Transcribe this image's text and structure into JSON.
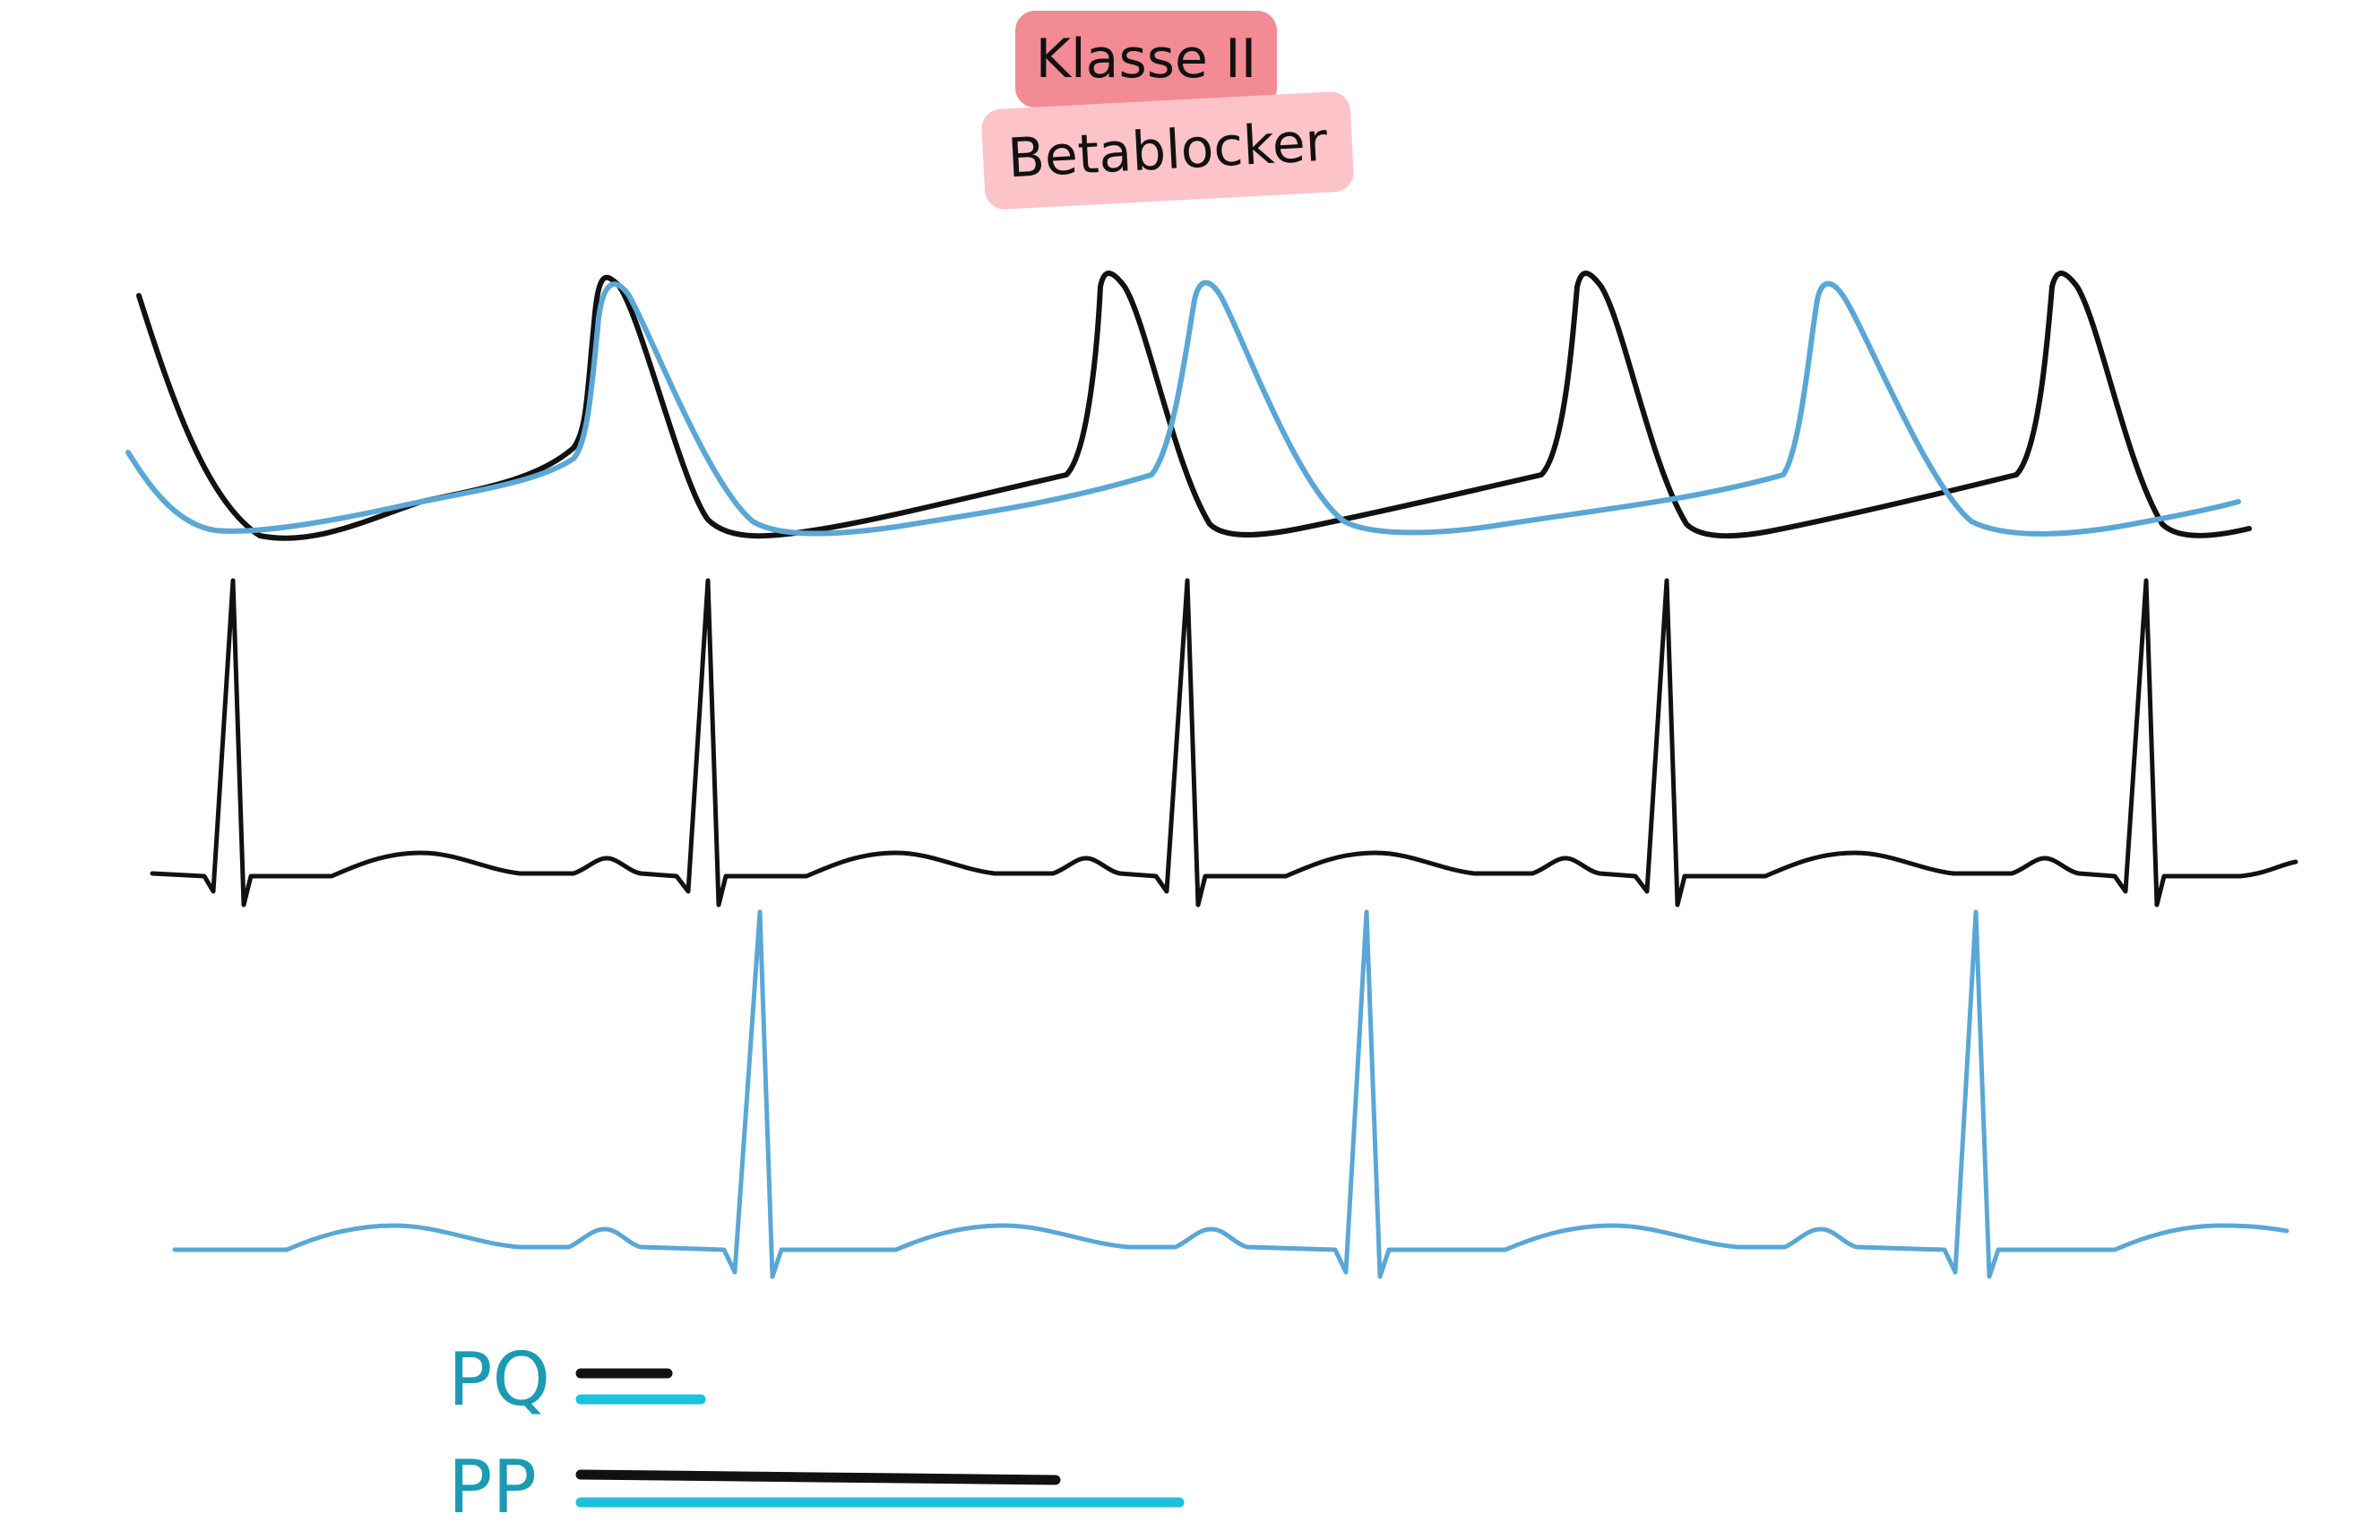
{
  "tags": {
    "class_label": "Klasse II",
    "drug_label": "Betablocker"
  },
  "legend": {
    "pq_label": "PQ",
    "pp_label": "PP"
  },
  "colors": {
    "baseline_trace": "#111111",
    "drug_trace": "#5aa7d6",
    "legend_drug_bar": "#1ec0de",
    "legend_text": "#1b9bb3",
    "tag_class_bg": "#f28b93",
    "tag_drug_bg": "#fcc3c9"
  }
}
